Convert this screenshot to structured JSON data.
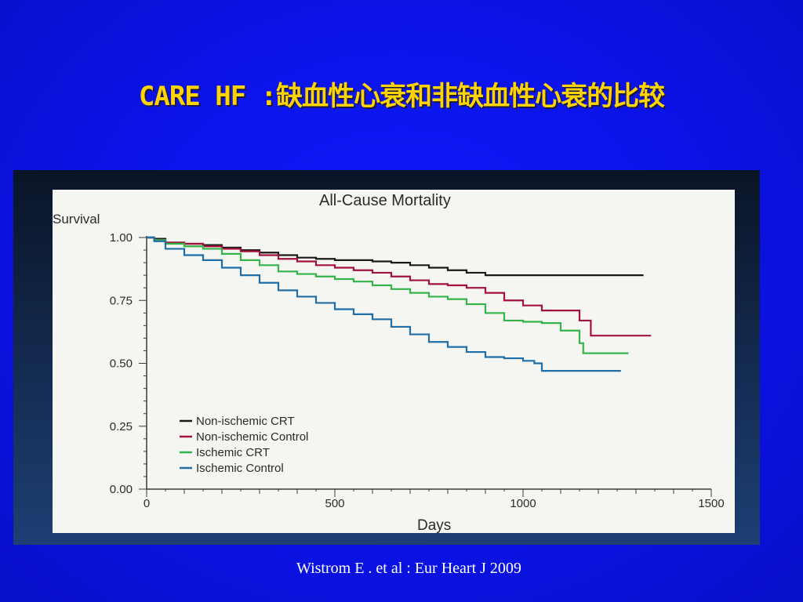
{
  "slide": {
    "title": "CARE HF :缺血性心衰和非缺血性心衰的比较",
    "citation": "Wistrom E . et al : Eur Heart J 2009"
  },
  "colors": {
    "background": "#0a12e6",
    "title": "#ffd400",
    "plot_background": "#f5f5f1",
    "non_ischemic_crt": "#1a1a1a",
    "non_ischemic_control": "#a3123a",
    "ischemic_crt": "#33b34a",
    "ischemic_control": "#1f6ea8"
  },
  "chart_data": {
    "type": "line",
    "step": true,
    "title": "All-Cause Mortality",
    "ylabel": "Survival",
    "xlabel": "Days",
    "xlim": [
      0,
      1500
    ],
    "ylim": [
      0,
      1.0
    ],
    "x_ticks": [
      0,
      500,
      1000,
      1500
    ],
    "y_ticks": [
      0.0,
      0.25,
      0.5,
      0.75,
      1.0
    ],
    "x_tick_labels": [
      "0",
      "500",
      "1000",
      "1500"
    ],
    "y_tick_labels": [
      "0.00",
      "0.25",
      "0.50",
      "0.75",
      "1.00"
    ],
    "legend_position": "lower-left",
    "grid": false,
    "series": [
      {
        "name": "Non-ischemic CRT",
        "color": "#1a1a1a",
        "points": [
          [
            0,
            1.0
          ],
          [
            20,
            0.995
          ],
          [
            50,
            0.98
          ],
          [
            100,
            0.975
          ],
          [
            150,
            0.97
          ],
          [
            200,
            0.96
          ],
          [
            250,
            0.95
          ],
          [
            300,
            0.94
          ],
          [
            350,
            0.93
          ],
          [
            400,
            0.92
          ],
          [
            450,
            0.915
          ],
          [
            500,
            0.91
          ],
          [
            550,
            0.91
          ],
          [
            600,
            0.905
          ],
          [
            650,
            0.9
          ],
          [
            700,
            0.89
          ],
          [
            750,
            0.88
          ],
          [
            800,
            0.87
          ],
          [
            850,
            0.86
          ],
          [
            900,
            0.85
          ],
          [
            950,
            0.85
          ],
          [
            1000,
            0.85
          ],
          [
            1100,
            0.85
          ],
          [
            1200,
            0.85
          ],
          [
            1320,
            0.85
          ]
        ]
      },
      {
        "name": "Non-ischemic Control",
        "color": "#a3123a",
        "points": [
          [
            0,
            1.0
          ],
          [
            20,
            0.99
          ],
          [
            50,
            0.98
          ],
          [
            100,
            0.975
          ],
          [
            150,
            0.965
          ],
          [
            200,
            0.955
          ],
          [
            250,
            0.945
          ],
          [
            300,
            0.93
          ],
          [
            350,
            0.915
          ],
          [
            400,
            0.905
          ],
          [
            450,
            0.89
          ],
          [
            500,
            0.88
          ],
          [
            550,
            0.87
          ],
          [
            600,
            0.86
          ],
          [
            650,
            0.845
          ],
          [
            700,
            0.83
          ],
          [
            750,
            0.815
          ],
          [
            800,
            0.81
          ],
          [
            850,
            0.8
          ],
          [
            900,
            0.78
          ],
          [
            950,
            0.75
          ],
          [
            1000,
            0.73
          ],
          [
            1050,
            0.71
          ],
          [
            1100,
            0.71
          ],
          [
            1150,
            0.67
          ],
          [
            1180,
            0.61
          ],
          [
            1250,
            0.61
          ],
          [
            1340,
            0.61
          ]
        ]
      },
      {
        "name": "Ischemic CRT",
        "color": "#33b34a",
        "points": [
          [
            0,
            1.0
          ],
          [
            20,
            0.99
          ],
          [
            50,
            0.975
          ],
          [
            100,
            0.965
          ],
          [
            150,
            0.955
          ],
          [
            200,
            0.935
          ],
          [
            250,
            0.91
          ],
          [
            300,
            0.89
          ],
          [
            350,
            0.865
          ],
          [
            400,
            0.855
          ],
          [
            450,
            0.845
          ],
          [
            500,
            0.835
          ],
          [
            550,
            0.825
          ],
          [
            600,
            0.81
          ],
          [
            650,
            0.795
          ],
          [
            700,
            0.78
          ],
          [
            750,
            0.765
          ],
          [
            800,
            0.755
          ],
          [
            850,
            0.735
          ],
          [
            900,
            0.7
          ],
          [
            950,
            0.67
          ],
          [
            1000,
            0.665
          ],
          [
            1050,
            0.66
          ],
          [
            1100,
            0.63
          ],
          [
            1150,
            0.58
          ],
          [
            1160,
            0.54
          ],
          [
            1200,
            0.54
          ],
          [
            1280,
            0.54
          ]
        ]
      },
      {
        "name": "Ischemic Control",
        "color": "#1f6ea8",
        "points": [
          [
            0,
            1.0
          ],
          [
            20,
            0.985
          ],
          [
            50,
            0.955
          ],
          [
            100,
            0.93
          ],
          [
            150,
            0.91
          ],
          [
            200,
            0.88
          ],
          [
            250,
            0.85
          ],
          [
            300,
            0.82
          ],
          [
            350,
            0.79
          ],
          [
            400,
            0.765
          ],
          [
            450,
            0.74
          ],
          [
            500,
            0.715
          ],
          [
            550,
            0.695
          ],
          [
            600,
            0.675
          ],
          [
            650,
            0.645
          ],
          [
            700,
            0.615
          ],
          [
            750,
            0.585
          ],
          [
            800,
            0.565
          ],
          [
            850,
            0.545
          ],
          [
            900,
            0.525
          ],
          [
            950,
            0.52
          ],
          [
            1000,
            0.51
          ],
          [
            1030,
            0.5
          ],
          [
            1050,
            0.47
          ],
          [
            1100,
            0.47
          ],
          [
            1200,
            0.47
          ],
          [
            1260,
            0.47
          ]
        ]
      }
    ]
  }
}
